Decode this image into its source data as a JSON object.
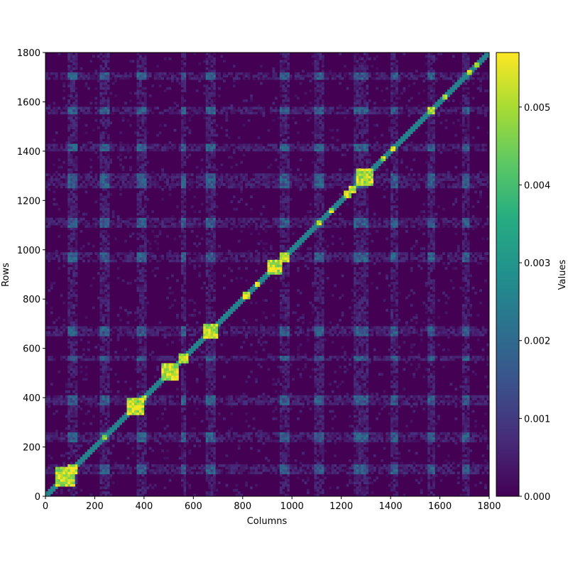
{
  "chart_data": {
    "type": "heatmap",
    "title": "",
    "xlabel": "Columns",
    "ylabel": "Rows",
    "xlim": [
      0,
      1800
    ],
    "ylim": [
      0,
      1800
    ],
    "xticks": [
      0,
      200,
      400,
      600,
      800,
      1000,
      1200,
      1400,
      1600,
      1800
    ],
    "yticks": [
      0,
      200,
      400,
      600,
      800,
      1000,
      1200,
      1400,
      1600,
      1800
    ],
    "colorbar": {
      "label": "Values",
      "min": 0.0,
      "max": 0.0057,
      "ticks": [
        "0.000",
        "0.001",
        "0.002",
        "0.003",
        "0.004",
        "0.005"
      ],
      "tick_values": [
        0.0,
        0.001,
        0.002,
        0.003,
        0.004,
        0.005
      ],
      "colormap": "viridis"
    },
    "diagonal_blocks": [
      {
        "start": 40,
        "end": 120
      },
      {
        "start": 60,
        "end": 80
      },
      {
        "start": 95,
        "end": 125
      },
      {
        "start": 230,
        "end": 250
      },
      {
        "start": 330,
        "end": 400
      },
      {
        "start": 360,
        "end": 380
      },
      {
        "start": 390,
        "end": 410
      },
      {
        "start": 470,
        "end": 540
      },
      {
        "start": 540,
        "end": 575
      },
      {
        "start": 640,
        "end": 700
      },
      {
        "start": 660,
        "end": 680
      },
      {
        "start": 800,
        "end": 830
      },
      {
        "start": 850,
        "end": 870
      },
      {
        "start": 900,
        "end": 960
      },
      {
        "start": 950,
        "end": 985
      },
      {
        "start": 1100,
        "end": 1120
      },
      {
        "start": 1150,
        "end": 1170
      },
      {
        "start": 1210,
        "end": 1240
      },
      {
        "start": 1230,
        "end": 1260
      },
      {
        "start": 1260,
        "end": 1330
      },
      {
        "start": 1360,
        "end": 1380
      },
      {
        "start": 1400,
        "end": 1420
      },
      {
        "start": 1555,
        "end": 1575
      },
      {
        "start": 1610,
        "end": 1630
      },
      {
        "start": 1710,
        "end": 1730
      },
      {
        "start": 1740,
        "end": 1760
      }
    ],
    "bright_bands": [
      100,
      120,
      230,
      250,
      380,
      400,
      560,
      660,
      680,
      960,
      980,
      1100,
      1120,
      1260,
      1280,
      1300,
      1410,
      1420,
      1560,
      1570,
      1700,
      1710
    ],
    "background_value": 0.0,
    "peak_value": 0.0057
  }
}
